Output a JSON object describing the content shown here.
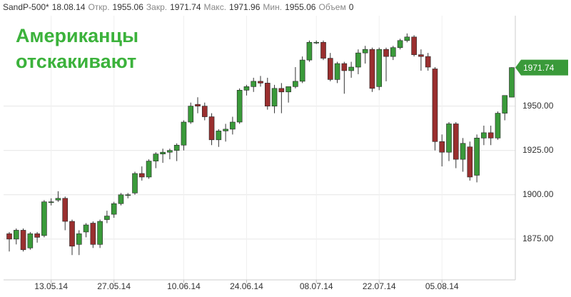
{
  "chart_data": {
    "type": "candlestick",
    "header": {
      "symbol": "SandP-500*",
      "date": "18.08.14",
      "fields": [
        {
          "label": "Откр.",
          "value": 1955.06
        },
        {
          "label": "Закр.",
          "value": 1971.74
        },
        {
          "label": "Макс.",
          "value": 1971.96
        },
        {
          "label": "Мин.",
          "value": 1955.06
        },
        {
          "label": "Объем",
          "value": 0
        }
      ]
    },
    "title": [
      "Американцы",
      "отскакивают"
    ],
    "categories": [
      null,
      null,
      null,
      null,
      null,
      null,
      "13.05.14",
      null,
      null,
      null,
      null,
      null,
      null,
      null,
      null,
      "27.05.14",
      null,
      null,
      null,
      null,
      null,
      null,
      null,
      null,
      null,
      "10.06.14",
      null,
      null,
      null,
      null,
      null,
      null,
      null,
      null,
      "24.06.14",
      null,
      null,
      null,
      null,
      null,
      null,
      null,
      null,
      null,
      "08.07.14",
      null,
      null,
      null,
      null,
      null,
      null,
      null,
      null,
      "22.07.14",
      null,
      null,
      null,
      null,
      null,
      null,
      null,
      null,
      "05.08.14",
      null,
      null,
      null,
      null,
      null,
      null,
      null,
      null,
      null,
      null
    ],
    "open": [
      1878,
      1875,
      1880,
      1870,
      1878,
      1877,
      1896,
      1897,
      1898,
      1885,
      1872,
      1879,
      1884,
      1872,
      1886,
      1889,
      1895,
      1900,
      1901,
      1912,
      1910,
      1919,
      1923,
      1924,
      1925,
      1928,
      1941,
      1951,
      1950,
      1944,
      1931,
      1936,
      1937,
      1941,
      1959,
      1961,
      1964,
      1963,
      1950,
      1960,
      1958,
      1961,
      1964,
      1976,
      1986,
      1986,
      1977,
      1965,
      1974,
      1970,
      1972,
      1980,
      1982,
      1961,
      1982,
      1978,
      1983,
      1987,
      1989,
      1979,
      1978,
      1971,
      1930,
      1924,
      1940,
      1920,
      1927,
      1911,
      1932,
      1935,
      1932,
      1946,
      1955.06
    ],
    "high": [
      1879,
      1881,
      1881,
      1879,
      1879,
      1897,
      1898,
      1902,
      1899,
      1886,
      1880,
      1884,
      1885,
      1886,
      1891,
      1896,
      1901,
      1901,
      1913,
      1916,
      1920,
      1924,
      1926,
      1926,
      1929,
      1942,
      1952,
      1955,
      1952,
      1946,
      1937,
      1940,
      1944,
      1960,
      1962,
      1966,
      1967,
      1966,
      1962,
      1963,
      1961,
      1972,
      1978,
      1987,
      1987,
      1987,
      1980,
      1975,
      1975,
      1975,
      1982,
      1984,
      1983,
      1983,
      1983,
      1984,
      1988,
      1991,
      1990,
      1982,
      1980,
      1972,
      1934,
      1941,
      1941,
      1932,
      1930,
      1934,
      1939,
      1939,
      1947,
      1956,
      1971.96
    ],
    "low": [
      1868,
      1872,
      1868,
      1869,
      1873,
      1876,
      1894,
      1896,
      1880,
      1866,
      1866,
      1876,
      1870,
      1870,
      1884,
      1887,
      1894,
      1898,
      1900,
      1908,
      1909,
      1915,
      1918,
      1920,
      1919,
      1925,
      1940,
      1946,
      1942,
      1928,
      1927,
      1930,
      1934,
      1940,
      1956,
      1958,
      1961,
      1948,
      1946,
      1946,
      1952,
      1960,
      1963,
      1975,
      1985,
      1976,
      1964,
      1963,
      1957,
      1966,
      1968,
      1974,
      1958,
      1959,
      1964,
      1976,
      1982,
      1986,
      1978,
      1970,
      1970,
      1925,
      1916,
      1919,
      1915,
      1913,
      1908,
      1907,
      1928,
      1928,
      1931,
      1942,
      1955.06
    ],
    "close": [
      1875,
      1880,
      1869,
      1878,
      1876,
      1896,
      1896,
      1898,
      1885,
      1871,
      1878,
      1883,
      1872,
      1885,
      1888,
      1895,
      1900,
      1900,
      1912,
      1910,
      1919,
      1923,
      1924,
      1925,
      1928,
      1941,
      1950,
      1950,
      1944,
      1931,
      1936,
      1937,
      1941,
      1959,
      1961,
      1964,
      1963,
      1950,
      1960,
      1958,
      1961,
      1964,
      1976,
      1986,
      1986,
      1977,
      1965,
      1974,
      1970,
      1972,
      1980,
      1982,
      1960,
      1982,
      1978,
      1983,
      1987,
      1989,
      1979,
      1978,
      1972,
      1930,
      1924,
      1940,
      1920,
      1929,
      1910,
      1932,
      1935,
      1932,
      1946,
      1956,
      1971.74
    ],
    "up_color": "#3a9a3a",
    "down_color": "#9a2f2f",
    "last_price": 1971.74,
    "ylim": [
      1852,
      2001
    ],
    "yticks": [
      {
        "value": 1875,
        "label": "1875.00"
      },
      {
        "value": 1900,
        "label": "1900.00"
      },
      {
        "value": 1925,
        "label": "1925.00"
      },
      {
        "value": 1950,
        "label": "1950.00"
      }
    ],
    "grid": true
  }
}
